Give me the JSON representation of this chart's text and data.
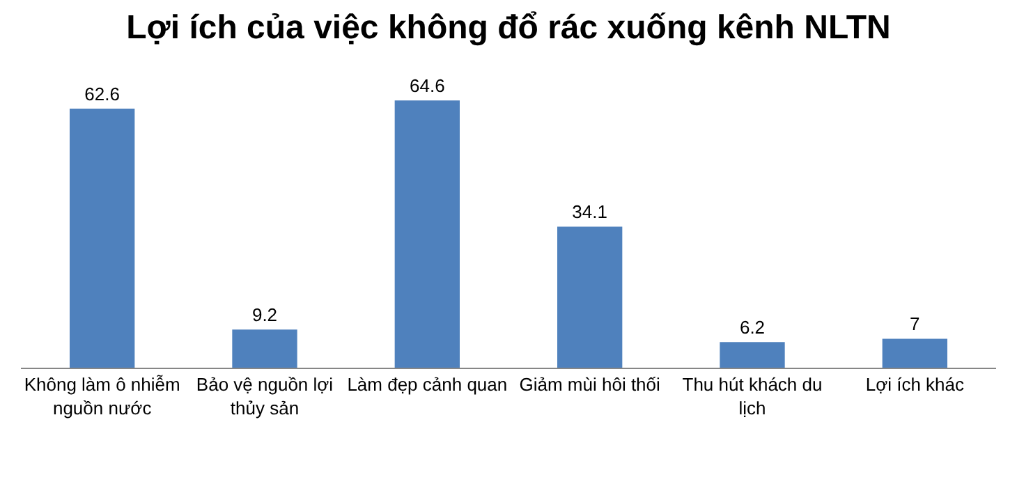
{
  "chart_data": {
    "type": "bar",
    "title": "Lợi ích của việc không đổ rác xuống kênh NLTN",
    "categories": [
      "Không làm ô nhiễm nguồn nước",
      "Bảo vệ nguồn lợi thủy sản",
      "Làm đẹp cảnh quan",
      "Giảm mùi hôi thối",
      "Thu hút khách du lịch",
      "Lợi ích khác"
    ],
    "values": [
      62.6,
      9.2,
      64.6,
      34.1,
      6.2,
      7
    ],
    "color": "#4f81bd",
    "data_labels": true,
    "tick_labels": "x"
  }
}
